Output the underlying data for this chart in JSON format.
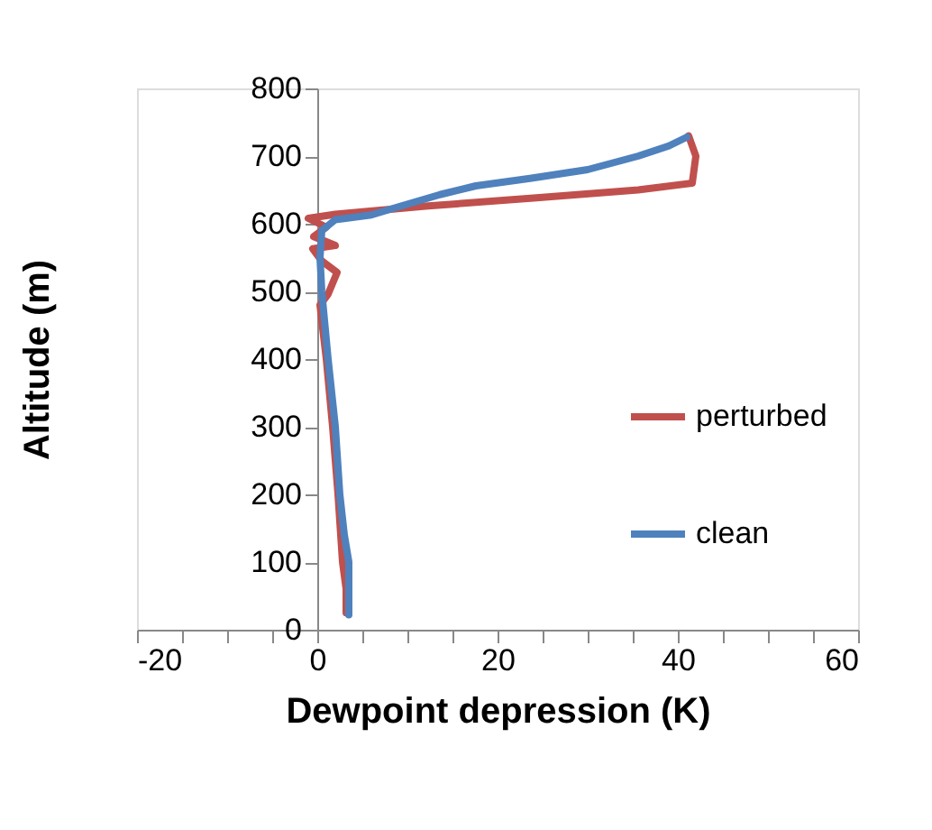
{
  "chart_data": {
    "type": "line",
    "xlabel": "Dewpoint depression (K)",
    "ylabel": "Altitude (m)",
    "xlim": [
      -20,
      60
    ],
    "xticks": [
      -20,
      {
        "value": -15,
        "label": null
      },
      {
        "value": -10,
        "label": null
      },
      {
        "value": -5,
        "label": null
      },
      0,
      {
        "value": 5,
        "label": null
      },
      {
        "value": 10,
        "label": null
      },
      {
        "value": 15,
        "label": null
      },
      20,
      {
        "value": 25,
        "label": null
      },
      {
        "value": 30,
        "label": null
      },
      {
        "value": 35,
        "label": null
      },
      40,
      {
        "value": 45,
        "label": null
      },
      {
        "value": 50,
        "label": null
      },
      {
        "value": 55,
        "label": null
      },
      60
    ],
    "ylim": [
      0,
      800
    ],
    "yticks": [
      0,
      100,
      200,
      300,
      400,
      500,
      600,
      700,
      800
    ],
    "grid": false,
    "legend": "right",
    "marker": "none",
    "line_style": "solid",
    "series": [
      {
        "name": "perturbed",
        "color": "#c0504d",
        "x": [
          3.2,
          3.2,
          2.8,
          2.3,
          1.7,
          1,
          0.3,
          1.2,
          2.2,
          0.5,
          -0.5,
          2,
          -0.4,
          1,
          -1,
          2,
          12,
          24,
          35.6,
          41.6,
          42,
          41.2
        ],
        "values": [
          25,
          60,
          100,
          200,
          300,
          400,
          480,
          496,
          528,
          545,
          563,
          568,
          581,
          595,
          608,
          614,
          626,
          638,
          650,
          660,
          700,
          730
        ]
      },
      {
        "name": "clean",
        "color": "#4f81bd",
        "x": [
          3.5,
          3.5,
          3,
          2.5,
          2,
          1.2,
          0.5,
          0.3,
          0.5,
          2,
          6,
          9,
          13.6,
          17.6,
          23.6,
          30,
          35.6,
          39,
          41
        ],
        "values": [
          22,
          100,
          140,
          200,
          300,
          400,
          500,
          550,
          590,
          606,
          613,
          625,
          643,
          656,
          667,
          680,
          700,
          715,
          728
        ]
      }
    ]
  }
}
